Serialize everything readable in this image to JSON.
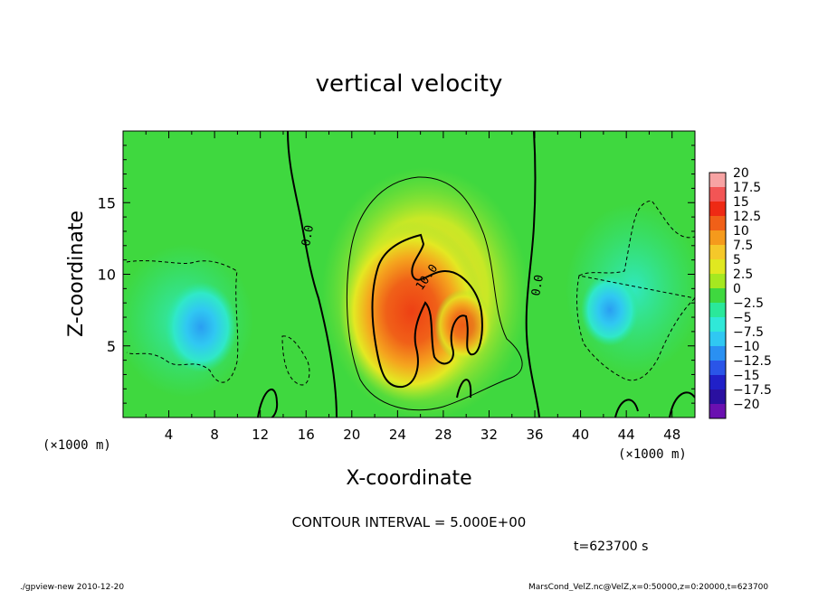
{
  "chart_data": {
    "type": "heatmap",
    "title": "vertical velocity",
    "xlabel": "X-coordinate",
    "ylabel": "Z-coordinate",
    "x_unit_left": "(×1000 m)",
    "x_unit_right": "(×1000 m)",
    "xlim": [
      0,
      50
    ],
    "ylim": [
      0,
      20
    ],
    "x_ticks": [
      4,
      8,
      12,
      16,
      20,
      24,
      28,
      32,
      36,
      40,
      44,
      48
    ],
    "y_ticks": [
      5,
      10,
      15
    ],
    "colorbar_labels": [
      "20",
      "17.5",
      "15",
      "12.5",
      "10",
      "7.5",
      "5",
      "2.5",
      "0",
      "−2.5",
      "−5",
      "−7.5",
      "−10",
      "−12.5",
      "−15",
      "−17.5",
      "−20"
    ],
    "colorbar_colors": [
      "#f7a3a3",
      "#f25555",
      "#ee2a14",
      "#f06018",
      "#f59a1c",
      "#f5c82a",
      "#e0e820",
      "#a5e820",
      "#3fd83f",
      "#2ae89a",
      "#30e8d8",
      "#30c8f2",
      "#2a90f2",
      "#2a55e8",
      "#2020c8",
      "#2a10a0",
      "#6a10b0"
    ],
    "contour_labels": [
      "0.0",
      "10.0",
      "0.0"
    ],
    "contour_interval_text": "CONTOUR INTERVAL = 5.000E+00",
    "time_text": "t=623700 s",
    "footer_left": "./gpview-new  2010-12-20",
    "footer_right": "MarsCond_VelZ.nc@VelZ,x=0:50000,z=0:20000,t=623700"
  },
  "colors": {
    "background_field": "#3fd83f",
    "updraft_core": "#f06018",
    "downdraft": "#30c8f2"
  }
}
